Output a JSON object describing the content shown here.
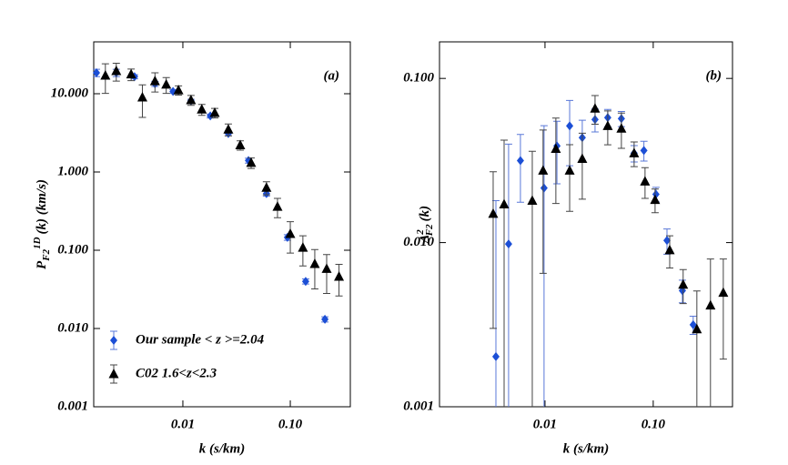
{
  "chart_data": [
    {
      "type": "scatter",
      "panel_label": "(a)",
      "x_label": "k (s/km)",
      "y_label": {
        "main": "P",
        "sub": "F2",
        "sup": "1D",
        "rest": "(k) (km/s)"
      },
      "xscale": "log",
      "yscale": "log",
      "xlim": [
        0.00148,
        0.362
      ],
      "ylim": [
        0.001,
        46
      ],
      "xticks": [
        0.01,
        {
          "value": 0.1,
          "label": "0.10"
        }
      ],
      "yticks": [
        0.001,
        {
          "value": 0.01,
          "label": "0.010"
        },
        {
          "value": 0.1,
          "label": "0.100"
        },
        {
          "value": 1,
          "label": "1.000"
        },
        {
          "value": 10,
          "label": "10.000"
        }
      ],
      "legend": "lower left",
      "series": [
        {
          "name": "Our sample < z >=2.04",
          "color": "#1c4fd6",
          "error_color": "#5a78d8",
          "marker": "diamond",
          "x": [
            0.00157,
            0.0024,
            0.00355,
            0.0055,
            0.0081,
            0.0119,
            0.018,
            0.0265,
            0.0408,
            0.06,
            0.094,
            0.139,
            0.21
          ],
          "values": [
            18.5,
            18.5,
            16.5,
            13.4,
            10.7,
            8.1,
            5.2,
            3.1,
            1.4,
            0.53,
            0.146,
            0.04,
            0.0131
          ],
          "errors": [
            2,
            2,
            1,
            1,
            0.6,
            0.4,
            0.3,
            0.2,
            0.1,
            0.04,
            0.012,
            0.003,
            0.001
          ]
        },
        {
          "name": "C02 1.6<z<2.3",
          "color": "#000000",
          "error_color": "#444444",
          "marker": "triangle",
          "x": [
            0.0019,
            0.0024,
            0.0033,
            0.0042,
            0.0055,
            0.007,
            0.0091,
            0.0119,
            0.015,
            0.0198,
            0.0265,
            0.0342,
            0.0432,
            0.06,
            0.076,
            0.1,
            0.131,
            0.169,
            0.218,
            0.284
          ],
          "values": [
            17.1,
            19.5,
            17.7,
            8.98,
            14.5,
            13.1,
            11.1,
            8.3,
            6.3,
            5.7,
            3.5,
            2.2,
            1.31,
            0.63,
            0.36,
            0.162,
            0.108,
            0.067,
            0.058,
            0.046
          ],
          "errors": [
            7,
            5,
            3,
            4,
            4,
            3,
            1.5,
            1.2,
            1,
            0.8,
            0.6,
            0.3,
            0.2,
            0.12,
            0.1,
            0.07,
            0.045,
            0.035,
            0.03,
            0.02
          ]
        }
      ]
    },
    {
      "type": "scatter",
      "panel_label": "(b)",
      "x_label": "k (s/km)",
      "y_label": {
        "main": "Δ",
        "sup": "2",
        "sub": "F2",
        "rest": "(k)"
      },
      "xscale": "log",
      "yscale": "log",
      "xlim": [
        0.00106,
        0.54
      ],
      "ylim": [
        0.001,
        0.167
      ],
      "xticks": [
        0.01,
        {
          "value": 0.1,
          "label": "0.10"
        }
      ],
      "yticks": [
        0.001,
        {
          "value": 0.01,
          "label": "0.010"
        },
        {
          "value": 0.1,
          "label": "0.100"
        }
      ],
      "series": [
        {
          "color": "#1c4fd6",
          "error_color": "#5a78d8",
          "marker": "diamond",
          "x": [
            0.00352,
            0.00461,
            0.00593,
            0.0098,
            0.0129,
            0.0169,
            0.0221,
            0.029,
            0.038,
            0.0508,
            0.0666,
            0.082,
            0.106,
            0.134,
            0.186,
            0.234
          ],
          "values": [
            0.00202,
            0.0098,
            0.0316,
            0.0215,
            0.0388,
            0.0514,
            0.0436,
            0.0562,
            0.0577,
            0.0569,
            0.035,
            0.0364,
            0.0197,
            0.0103,
            0.0051,
            0.00316
          ],
          "errors": [
            0.016,
            0.03,
            0.014,
            0.03,
            0.016,
            0.022,
            0.012,
            0.009,
            0.007,
            0.006,
            0.004,
            0.005,
            0.002,
            0.0018,
            0.0008,
            0.0004
          ]
        },
        {
          "color": "#000000",
          "error_color": "#444444",
          "marker": "triangle",
          "x": [
            0.00332,
            0.00419,
            0.00763,
            0.0096,
            0.0126,
            0.0169,
            0.0221,
            0.029,
            0.038,
            0.0508,
            0.0666,
            0.084,
            0.104,
            0.142,
            0.189,
            0.253,
            0.338,
            0.444
          ],
          "values": [
            0.015,
            0.0171,
            0.018,
            0.0275,
            0.0373,
            0.0275,
            0.0324,
            0.0656,
            0.0514,
            0.0495,
            0.035,
            0.0236,
            0.0182,
            0.009,
            0.00555,
            0.00297,
            0.00414,
            0.00495
          ],
          "errors": [
            0.012,
            0.025,
            0.018,
            0.021,
            0.02,
            0.012,
            0.014,
            0.013,
            0.012,
            0.012,
            0.006,
            0.005,
            0.003,
            0.002,
            0.0013,
            0.0021,
            0.0038,
            0.003
          ]
        }
      ]
    }
  ]
}
